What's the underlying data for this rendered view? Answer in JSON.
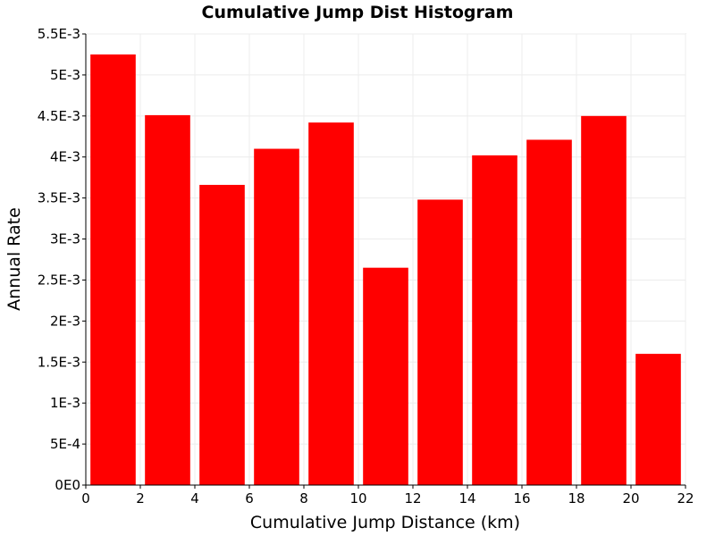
{
  "chart_data": {
    "type": "bar",
    "title": "Cumulative Jump Dist Histogram",
    "xlabel": "Cumulative Jump Distance (km)",
    "ylabel": "Annual Rate",
    "xlim": [
      0,
      22
    ],
    "ylim": [
      0,
      0.0055
    ],
    "bar_color": "#ff0000",
    "grid": true,
    "x_ticks": [
      0,
      2,
      4,
      6,
      8,
      10,
      12,
      14,
      16,
      18,
      20,
      22
    ],
    "x_tick_labels": [
      "0",
      "2",
      "4",
      "6",
      "8",
      "10",
      "12",
      "14",
      "16",
      "18",
      "20",
      "22"
    ],
    "y_ticks": [
      0,
      0.0005,
      0.001,
      0.0015,
      0.002,
      0.0025,
      0.003,
      0.0035,
      0.004,
      0.0045,
      0.005,
      0.0055
    ],
    "y_tick_labels": [
      "0E0",
      "5E-4",
      "1E-3",
      "1.5E-3",
      "2E-3",
      "2.5E-3",
      "3E-3",
      "3.5E-3",
      "4E-3",
      "4.5E-3",
      "5E-3",
      "5.5E-3"
    ],
    "bin_width": 2,
    "x": [
      1,
      3,
      5,
      7,
      9,
      11,
      13,
      15,
      17,
      19,
      21
    ],
    "values": [
      0.00525,
      0.00451,
      0.00366,
      0.0041,
      0.00442,
      0.00265,
      0.00348,
      0.00402,
      0.00421,
      0.0045,
      0.0016
    ]
  }
}
